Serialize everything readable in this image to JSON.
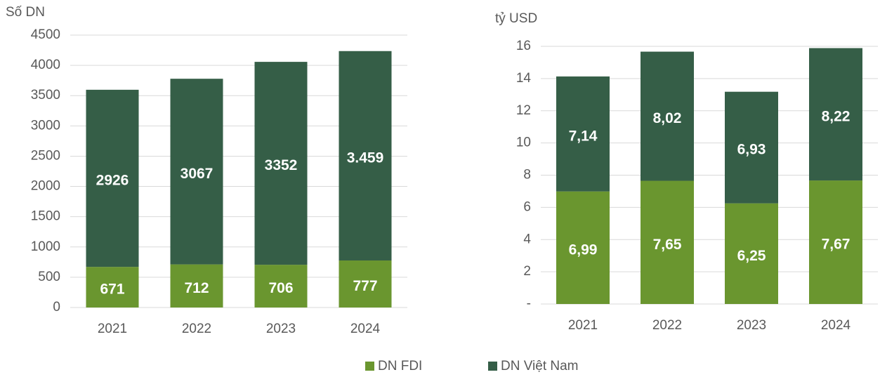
{
  "chart_data": [
    {
      "type": "stacked_bar",
      "y_label": "Số DN",
      "categories": [
        "2021",
        "2022",
        "2023",
        "2024"
      ],
      "series": [
        {
          "name": "DN FDI",
          "color": "#6a962f",
          "values": [
            671,
            712,
            706,
            777
          ]
        },
        {
          "name": "DN Việt Nam",
          "color": "#355e47",
          "values": [
            2926,
            3067,
            3352,
            3459
          ],
          "value_labels": [
            "2926",
            "3067",
            "3352",
            "3.459"
          ]
        }
      ],
      "ylim": [
        0,
        4500
      ],
      "yticks": [
        0,
        500,
        1000,
        1500,
        2000,
        2500,
        3000,
        3500,
        4000,
        4500
      ],
      "grid": true
    },
    {
      "type": "stacked_bar",
      "y_label": "tỷ USD",
      "categories": [
        "2021",
        "2022",
        "2023",
        "2024"
      ],
      "series": [
        {
          "color": "#6a962f",
          "values": [
            6.99,
            7.65,
            6.25,
            7.67
          ],
          "value_labels": [
            "6,99",
            "7,65",
            "6,25",
            "7,67"
          ]
        },
        {
          "color": "#355e47",
          "values": [
            7.14,
            8.02,
            6.93,
            8.22
          ],
          "value_labels": [
            "7,14",
            "8,02",
            "6,93",
            "8,22"
          ]
        }
      ],
      "ylim": [
        0,
        16
      ],
      "yticks": [
        {
          "value": 0,
          "label": "-"
        },
        2,
        4,
        6,
        8,
        10,
        12,
        14,
        16
      ],
      "grid": true
    }
  ]
}
